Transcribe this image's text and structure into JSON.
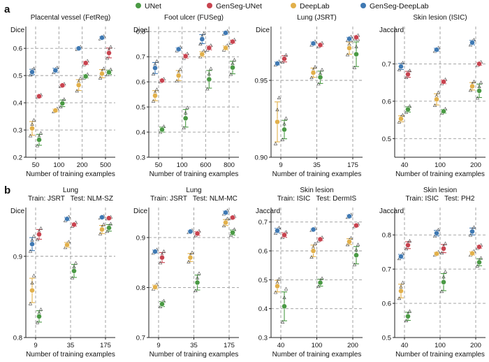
{
  "legend": [
    {
      "name": "UNet",
      "color": "#4a9a44"
    },
    {
      "name": "GenSeg-UNet",
      "color": "#c8434f"
    },
    {
      "name": "DeepLab",
      "color": "#e2b04a"
    },
    {
      "name": "GenSeg-DeepLab",
      "color": "#3f79b3"
    }
  ],
  "rows": [
    {
      "letter": "a"
    },
    {
      "letter": "b"
    }
  ],
  "chart_data": [
    {
      "type": "scatter",
      "title": "Placental vessel (FetReg)",
      "title2": "",
      "ylabel": "Dice",
      "xlabel": "Number of training examples",
      "categories": [
        "50",
        "100",
        "200",
        "500"
      ],
      "ylim": [
        0.2,
        0.68
      ],
      "yticks": [
        0.2,
        0.3,
        0.4,
        0.5,
        0.6
      ],
      "ytick_labels": [
        "0.2",
        "0.3",
        "0.4",
        "0.5",
        "0.6"
      ],
      "series": [
        {
          "name": "UNet",
          "values": [
            0.264,
            0.398,
            0.497,
            0.512
          ],
          "err": [
            0.02,
            0.012,
            0.006,
            0.008
          ]
        },
        {
          "name": "GenSeg-UNet",
          "values": [
            0.424,
            0.464,
            0.546,
            0.583
          ],
          "err": [
            0.004,
            0.004,
            0.006,
            0.018
          ]
        },
        {
          "name": "DeepLab",
          "values": [
            0.306,
            0.372,
            0.465,
            0.507
          ],
          "err": [
            0.025,
            0.005,
            0.02,
            0.015
          ]
        },
        {
          "name": "GenSeg-DeepLab",
          "values": [
            0.513,
            0.519,
            0.6,
            0.639
          ],
          "err": [
            0.01,
            0.008,
            0.004,
            0.004
          ]
        }
      ]
    },
    {
      "type": "scatter",
      "title": "Foot ulcer (FUSeg)",
      "title2": "",
      "ylabel": "Dice",
      "xlabel": "Number of training examples",
      "categories": [
        "50",
        "100",
        "600",
        "800"
      ],
      "ylim": [
        0.3,
        0.82
      ],
      "yticks": [
        0.3,
        0.4,
        0.5,
        0.6,
        0.7,
        0.8
      ],
      "ytick_labels": [
        "0.3",
        "0.4",
        "0.5",
        "0.6",
        "0.7",
        "0.8"
      ],
      "series": [
        {
          "name": "UNet",
          "values": [
            0.41,
            0.455,
            0.61,
            0.657
          ],
          "err": [
            0.01,
            0.035,
            0.035,
            0.025
          ]
        },
        {
          "name": "GenSeg-UNet",
          "values": [
            0.605,
            0.702,
            0.735,
            0.76
          ],
          "err": [
            0.005,
            0.008,
            0.008,
            0.006
          ]
        },
        {
          "name": "DeepLab",
          "values": [
            0.545,
            0.625,
            0.71,
            0.735
          ],
          "err": [
            0.02,
            0.02,
            0.01,
            0.008
          ]
        },
        {
          "name": "GenSeg-DeepLab",
          "values": [
            0.655,
            0.73,
            0.77,
            0.795
          ],
          "err": [
            0.022,
            0.006,
            0.018,
            0.005
          ]
        }
      ]
    },
    {
      "type": "scatter",
      "title": "Lung (JSRT)",
      "title2": "",
      "ylabel": "Dice",
      "xlabel": "Number of training examples",
      "categories": [
        "9",
        "35",
        "175"
      ],
      "ylim": [
        0.9,
        0.985
      ],
      "yticks": [
        0.9,
        0.95
      ],
      "ytick_labels": [
        "0.90",
        "0.95"
      ],
      "series": [
        {
          "name": "UNet",
          "values": [
            0.918,
            0.952,
            0.967
          ],
          "err": [
            0.006,
            0.004,
            0.008
          ]
        },
        {
          "name": "GenSeg-UNet",
          "values": [
            0.964,
            0.973,
            0.978
          ],
          "err": [
            0.002,
            0.001,
            0.001
          ]
        },
        {
          "name": "DeepLab",
          "values": [
            0.923,
            0.955,
            0.971
          ],
          "err": [
            0.013,
            0.003,
            0.004
          ]
        },
        {
          "name": "GenSeg-DeepLab",
          "values": [
            0.961,
            0.974,
            0.977
          ],
          "err": [
            0.001,
            0.001,
            0.001
          ]
        }
      ]
    },
    {
      "type": "scatter",
      "title": "Skin lesion (ISIC)",
      "title2": "",
      "ylabel": "Jaccard",
      "xlabel": "Number of training examples",
      "categories": [
        "40",
        "100",
        "200"
      ],
      "ylim": [
        0.45,
        0.8
      ],
      "yticks": [
        0.5,
        0.6,
        0.7
      ],
      "ytick_labels": [
        "0.5",
        "0.6",
        "0.7"
      ],
      "series": [
        {
          "name": "UNet",
          "values": [
            0.578,
            0.573,
            0.628
          ],
          "err": [
            0.007,
            0.005,
            0.018
          ]
        },
        {
          "name": "GenSeg-UNet",
          "values": [
            0.672,
            0.652,
            0.7
          ],
          "err": [
            0.008,
            0.005,
            0.004
          ]
        },
        {
          "name": "DeepLab",
          "values": [
            0.553,
            0.605,
            0.64
          ],
          "err": [
            0.008,
            0.015,
            0.01
          ]
        },
        {
          "name": "GenSeg-DeepLab",
          "values": [
            0.693,
            0.738,
            0.757
          ],
          "err": [
            0.008,
            0.004,
            0.006
          ]
        }
      ]
    },
    {
      "type": "scatter",
      "title": "Lung",
      "title2": "Train: JSRT   Test: NLM-SZ",
      "ylabel": "Dice",
      "xlabel": "Number of training examples",
      "categories": [
        "9",
        "35",
        "175"
      ],
      "ylim": [
        0.8,
        0.96
      ],
      "yticks": [
        0.8,
        0.9
      ],
      "ytick_labels": [
        "0.8",
        "0.9"
      ],
      "series": [
        {
          "name": "UNet",
          "values": [
            0.826,
            0.882,
            0.935
          ],
          "err": [
            0.007,
            0.008,
            0.004
          ]
        },
        {
          "name": "GenSeg-UNet",
          "values": [
            0.927,
            0.939,
            0.947
          ],
          "err": [
            0.006,
            0.002,
            0.001
          ]
        },
        {
          "name": "DeepLab",
          "values": [
            0.858,
            0.914,
            0.933
          ],
          "err": [
            0.015,
            0.003,
            0.005
          ]
        },
        {
          "name": "GenSeg-DeepLab",
          "values": [
            0.915,
            0.946,
            0.948
          ],
          "err": [
            0.008,
            0.002,
            0.001
          ]
        }
      ]
    },
    {
      "type": "scatter",
      "title": "Lung",
      "title2": "Train: JSRT   Test: NLM-MC",
      "ylabel": "Dice",
      "xlabel": "Number of training examples",
      "categories": [
        "9",
        "35",
        "175"
      ],
      "ylim": [
        0.7,
        0.96
      ],
      "yticks": [
        0.7,
        0.8,
        0.9
      ],
      "ytick_labels": [
        "0.7",
        "0.8",
        "0.9"
      ],
      "series": [
        {
          "name": "UNet",
          "values": [
            0.767,
            0.81,
            0.91
          ],
          "err": [
            0.005,
            0.015,
            0.005
          ]
        },
        {
          "name": "GenSeg-UNet",
          "values": [
            0.86,
            0.908,
            0.94
          ],
          "err": [
            0.01,
            0.004,
            0.002
          ]
        },
        {
          "name": "DeepLab",
          "values": [
            0.801,
            0.86,
            0.93
          ],
          "err": [
            0.004,
            0.008,
            0.006
          ]
        },
        {
          "name": "GenSeg-DeepLab",
          "values": [
            0.872,
            0.912,
            0.95
          ],
          "err": [
            0.003,
            0.002,
            0.003
          ]
        }
      ]
    },
    {
      "type": "scatter",
      "title": "Skin lesion",
      "title2": "Train: ISIC   Test: DermIS",
      "ylabel": "Jaccard",
      "xlabel": "Number of training examples",
      "categories": [
        "40",
        "100",
        "200"
      ],
      "ylim": [
        0.3,
        0.75
      ],
      "yticks": [
        0.3,
        0.4,
        0.5,
        0.6,
        0.7
      ],
      "ytick_labels": [
        "0.3",
        "0.4",
        "0.5",
        "0.6",
        "0.7"
      ],
      "series": [
        {
          "name": "UNet",
          "values": [
            0.408,
            0.49,
            0.585
          ],
          "err": [
            0.05,
            0.012,
            0.03
          ]
        },
        {
          "name": "GenSeg-UNet",
          "values": [
            0.655,
            0.64,
            0.688
          ],
          "err": [
            0.008,
            0.005,
            0.004
          ]
        },
        {
          "name": "DeepLab",
          "values": [
            0.478,
            0.6,
            0.632
          ],
          "err": [
            0.02,
            0.02,
            0.01
          ]
        },
        {
          "name": "GenSeg-DeepLab",
          "values": [
            0.67,
            0.674,
            0.72
          ],
          "err": [
            0.008,
            0.003,
            0.004
          ]
        }
      ]
    },
    {
      "type": "scatter",
      "title": "Skin lesion",
      "title2": "Train: ISIC   Test: PH2",
      "ylabel": "Jaccard",
      "xlabel": "Number of training examples",
      "categories": [
        "40",
        "100",
        "200"
      ],
      "ylim": [
        0.5,
        0.88
      ],
      "yticks": [
        0.5,
        0.6,
        0.7,
        0.8
      ],
      "ytick_labels": [
        "0.5",
        "0.6",
        "0.7",
        "0.8"
      ],
      "series": [
        {
          "name": "UNet",
          "values": [
            0.562,
            0.662,
            0.72
          ],
          "err": [
            0.012,
            0.025,
            0.01
          ]
        },
        {
          "name": "GenSeg-UNet",
          "values": [
            0.77,
            0.76,
            0.765
          ],
          "err": [
            0.01,
            0.012,
            0.004
          ]
        },
        {
          "name": "DeepLab",
          "values": [
            0.636,
            0.745,
            0.746
          ],
          "err": [
            0.02,
            0.004,
            0.005
          ]
        },
        {
          "name": "GenSeg-DeepLab",
          "values": [
            0.737,
            0.805,
            0.81
          ],
          "err": [
            0.006,
            0.008,
            0.01
          ]
        }
      ]
    }
  ]
}
